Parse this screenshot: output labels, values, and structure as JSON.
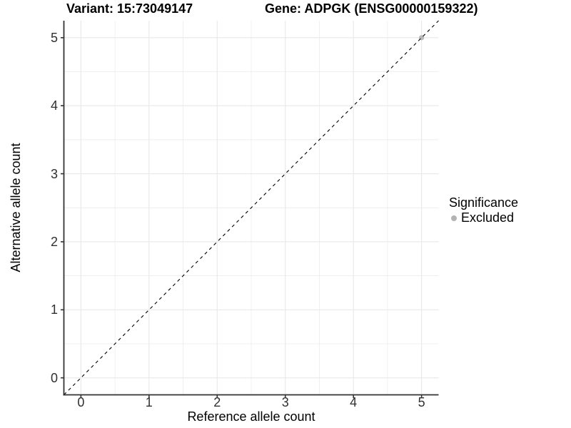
{
  "chart_data": {
    "type": "scatter",
    "titles": {
      "left": "Variant: 15:73049147",
      "right": "Gene: ADPGK (ENSG00000159322)"
    },
    "xlabel": "Reference allele count",
    "ylabel": "Alternative allele count",
    "x_ticks": [
      0,
      1,
      2,
      3,
      4,
      5
    ],
    "y_ticks": [
      0,
      1,
      2,
      3,
      4,
      5
    ],
    "xlim": [
      -0.25,
      5.25
    ],
    "ylim": [
      -0.25,
      5.25
    ],
    "grid": "major+minor",
    "points": [
      {
        "x": 5,
        "y": 5,
        "series": "Excluded"
      }
    ],
    "reference_line": {
      "slope": 1,
      "intercept": 0,
      "style": "dashed"
    },
    "legend": {
      "title": "Significance",
      "position": "right",
      "entries": [
        {
          "label": "Excluded",
          "color": "#b3b3b3"
        }
      ]
    },
    "colors": {
      "background": "#ffffff",
      "grid": "#e8e8e8",
      "axis": "#333333",
      "reference_line": "#000000",
      "point": "#b3b3b3",
      "tick_text": "#303030",
      "text": "#000000"
    }
  }
}
